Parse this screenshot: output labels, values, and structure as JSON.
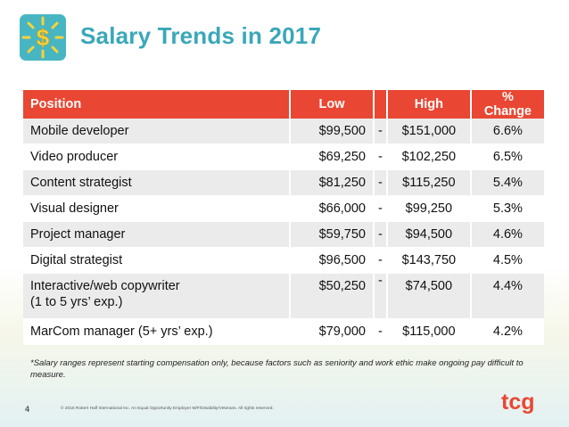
{
  "header": {
    "title": "Salary Trends in 2017",
    "logo_icon": "dollar-sun-icon",
    "logo_symbol": "$"
  },
  "table": {
    "headers": {
      "position": "Position",
      "low": "Low",
      "high": "High",
      "change": "% Change"
    },
    "rows": [
      {
        "position": "Mobile developer",
        "low": "$99,500",
        "sep": "-",
        "high": "$151,000",
        "change": "6.6%"
      },
      {
        "position": "Video producer",
        "low": "$69,250",
        "sep": "-",
        "high": "$102,250",
        "change": "6.5%"
      },
      {
        "position": "Content strategist",
        "low": "$81,250",
        "sep": "-",
        "high": "$115,250",
        "change": "5.4%"
      },
      {
        "position": "Visual designer",
        "low": "$66,000",
        "sep": "-",
        "high": "$99,250",
        "change": "5.3%"
      },
      {
        "position": "Project manager",
        "low": "$59,750",
        "sep": "-",
        "high": "$94,500",
        "change": "4.6%"
      },
      {
        "position": "Digital strategist",
        "low": "$96,500",
        "sep": "-",
        "high": "$143,750",
        "change": "4.5%"
      },
      {
        "position": "Interactive/web copywriter",
        "position_line2": "(1 to 5 yrs’ exp.)",
        "low": "$50,250",
        "sep": "-",
        "high": "$74,500",
        "change": "4.4%"
      },
      {
        "position": "MarCom manager (5+ yrs’ exp.)",
        "low": "$79,000",
        "sep": "-",
        "high": "$115,000",
        "change": "4.2%"
      }
    ]
  },
  "footnote": "*Salary ranges represent starting compensation only, because factors such as seniority and work ethic make ongoing pay difficult to measure.",
  "footer": {
    "page_number": "4",
    "copyright": "© 2016 Robert Half International Inc. An Equal Opportunity Employer M/F/Disability/Veterans. All rights reserved.",
    "brand_text": "tcg"
  },
  "colors": {
    "title": "#3aa7b9",
    "header_row": "#e94733",
    "stripe": "#ebebeb",
    "logo_badge": "#48b6c2",
    "sun": "#f6d23c"
  }
}
